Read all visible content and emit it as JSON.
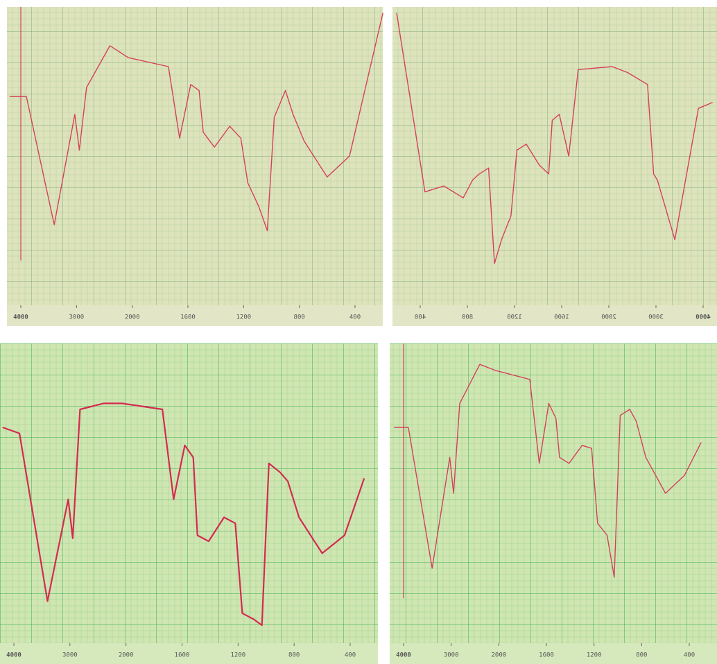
{
  "chart_data": [
    {
      "type": "line",
      "mirrored": false,
      "color": "#d4405c",
      "x": [
        4200,
        3900,
        3400,
        3030,
        2950,
        2820,
        2400,
        2070,
        1740,
        1660,
        1580,
        1520,
        1490,
        1410,
        1300,
        1220,
        1170,
        1090,
        1030,
        980,
        900,
        845,
        765,
        600,
        440,
        200
      ],
      "values": [
        70,
        70,
        27,
        64,
        52,
        73,
        87,
        83,
        80,
        56,
        74,
        72,
        58,
        53,
        60,
        56,
        41,
        33,
        25,
        63,
        72,
        64,
        55,
        43,
        50,
        98
      ],
      "xlim": [
        4200,
        200
      ],
      "ylim": [
        0,
        100
      ],
      "xticks": [
        4000,
        3000,
        2000,
        1600,
        1200,
        800,
        400
      ]
    },
    {
      "type": "line",
      "mirrored": true,
      "color": "#d4405c",
      "x": [
        4200,
        3900,
        3400,
        3030,
        2950,
        2820,
        2400,
        2070,
        1740,
        1660,
        1580,
        1520,
        1490,
        1410,
        1300,
        1220,
        1170,
        1090,
        1030,
        980,
        900,
        845,
        765,
        600,
        440,
        200
      ],
      "values": [
        68,
        66,
        22,
        42,
        44,
        74,
        78,
        80,
        79,
        50,
        64,
        62,
        44,
        47,
        54,
        52,
        30,
        22,
        14,
        46,
        44,
        42,
        36,
        40,
        38,
        98
      ],
      "xlim": [
        4200,
        200
      ],
      "ylim": [
        0,
        100
      ],
      "xticks": [
        4000,
        3000,
        2000,
        1600,
        1200,
        800,
        400
      ]
    },
    {
      "type": "line",
      "mirrored": false,
      "color": "#d42a50",
      "x": [
        4200,
        3900,
        3400,
        3030,
        2950,
        2820,
        2400,
        2070,
        1740,
        1660,
        1580,
        1520,
        1490,
        1410,
        1300,
        1220,
        1170,
        1090,
        1030,
        980,
        900,
        845,
        765,
        600,
        440,
        300
      ],
      "values": [
        72,
        70,
        14,
        48,
        35,
        78,
        80,
        80,
        78,
        48,
        66,
        62,
        36,
        34,
        42,
        40,
        10,
        8,
        6,
        60,
        57,
        54,
        42,
        30,
        36,
        55
      ],
      "xlim": [
        4200,
        200
      ],
      "ylim": [
        0,
        100
      ],
      "xticks": [
        4000,
        3000,
        2000,
        1600,
        1200,
        800,
        400
      ]
    },
    {
      "type": "line",
      "mirrored": false,
      "color": "#d4405c",
      "x": [
        4200,
        3900,
        3400,
        3030,
        2950,
        2820,
        2400,
        2070,
        1740,
        1660,
        1580,
        1520,
        1490,
        1410,
        1300,
        1220,
        1170,
        1090,
        1030,
        980,
        900,
        845,
        765,
        600,
        440,
        300
      ],
      "values": [
        72,
        72,
        25,
        62,
        50,
        80,
        93,
        91,
        88,
        60,
        80,
        75,
        62,
        60,
        66,
        65,
        40,
        36,
        22,
        76,
        78,
        74,
        62,
        50,
        56,
        67
      ],
      "xlim": [
        4200,
        200
      ],
      "ylim": [
        0,
        100
      ],
      "xticks": [
        4000,
        3000,
        2000,
        1600,
        1200,
        800,
        400
      ]
    }
  ]
}
